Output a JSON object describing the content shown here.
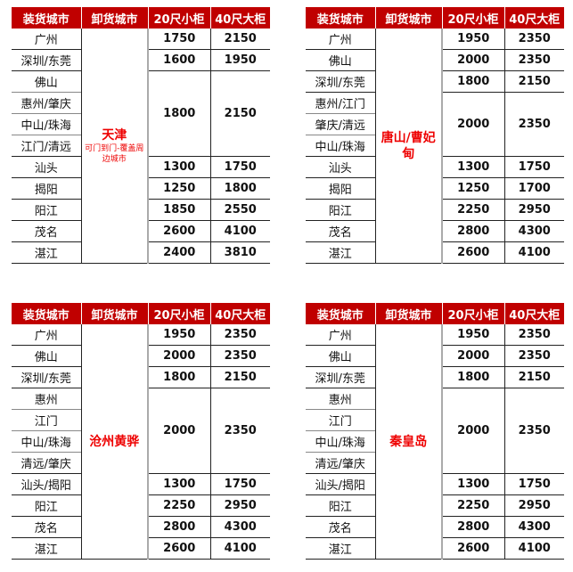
{
  "headers": [
    "装货城市",
    "卸货城市",
    "20尺小柜",
    "40尺大柜"
  ],
  "accent_color": "#c00000",
  "destination_color": "#ff0000",
  "tables": [
    {
      "destination": "天津",
      "note": "可门到门-覆盖周边城市",
      "load_cities": [
        "广州",
        "深圳/东莞",
        "佛山",
        "惠州/肇庆",
        "中山/珠海",
        "江门/清远",
        "汕头",
        "揭阳",
        "阳江",
        "茂名",
        "湛江"
      ],
      "prices": [
        {
          "rows": 1,
          "p20": "1750",
          "p40": "2150"
        },
        {
          "rows": 1,
          "p20": "1600",
          "p40": "1950"
        },
        {
          "rows": 4,
          "p20": "1800",
          "p40": "2150"
        },
        {
          "rows": 1,
          "p20": "1300",
          "p40": "1750"
        },
        {
          "rows": 1,
          "p20": "1250",
          "p40": "1800"
        },
        {
          "rows": 1,
          "p20": "1850",
          "p40": "2550"
        },
        {
          "rows": 1,
          "p20": "2600",
          "p40": "4100"
        },
        {
          "rows": 1,
          "p20": "2400",
          "p40": "3810"
        }
      ]
    },
    {
      "destination": "唐山/曹妃甸",
      "load_cities": [
        "广州",
        "佛山",
        "深圳/东莞",
        "惠州/江门",
        "肇庆/清远",
        "中山/珠海",
        "汕头",
        "揭阳",
        "阳江",
        "茂名",
        "湛江"
      ],
      "prices": [
        {
          "rows": 1,
          "p20": "1950",
          "p40": "2350"
        },
        {
          "rows": 1,
          "p20": "2000",
          "p40": "2350"
        },
        {
          "rows": 1,
          "p20": "1800",
          "p40": "2150"
        },
        {
          "rows": 3,
          "p20": "2000",
          "p40": "2350"
        },
        {
          "rows": 1,
          "p20": "1300",
          "p40": "1750"
        },
        {
          "rows": 1,
          "p20": "1250",
          "p40": "1700"
        },
        {
          "rows": 1,
          "p20": "2250",
          "p40": "2950"
        },
        {
          "rows": 1,
          "p20": "2800",
          "p40": "4300"
        },
        {
          "rows": 1,
          "p20": "2600",
          "p40": "4100"
        }
      ]
    },
    {
      "destination": "沧州黄骅",
      "load_cities": [
        "广州",
        "佛山",
        "深圳/东莞",
        "惠州",
        "江门",
        "中山/珠海",
        "清远/肇庆",
        "汕头/揭阳",
        "阳江",
        "茂名",
        "湛江"
      ],
      "prices": [
        {
          "rows": 1,
          "p20": "1950",
          "p40": "2350"
        },
        {
          "rows": 1,
          "p20": "2000",
          "p40": "2350"
        },
        {
          "rows": 1,
          "p20": "1800",
          "p40": "2150"
        },
        {
          "rows": 4,
          "p20": "2000",
          "p40": "2350"
        },
        {
          "rows": 1,
          "p20": "1300",
          "p40": "1750"
        },
        {
          "rows": 1,
          "p20": "2250",
          "p40": "2950"
        },
        {
          "rows": 1,
          "p20": "2800",
          "p40": "4300"
        },
        {
          "rows": 1,
          "p20": "2600",
          "p40": "4100"
        }
      ]
    },
    {
      "destination": "秦皇岛",
      "load_cities": [
        "广州",
        "佛山",
        "深圳/东莞",
        "惠州",
        "江门",
        "中山/珠海",
        "清远/肇庆",
        "汕头/揭阳",
        "阳江",
        "茂名",
        "湛江"
      ],
      "prices": [
        {
          "rows": 1,
          "p20": "1950",
          "p40": "2350"
        },
        {
          "rows": 1,
          "p20": "2000",
          "p40": "2350"
        },
        {
          "rows": 1,
          "p20": "1800",
          "p40": "2150"
        },
        {
          "rows": 4,
          "p20": "2000",
          "p40": "2350"
        },
        {
          "rows": 1,
          "p20": "1300",
          "p40": "1750"
        },
        {
          "rows": 1,
          "p20": "2250",
          "p40": "2950"
        },
        {
          "rows": 1,
          "p20": "2800",
          "p40": "4300"
        },
        {
          "rows": 1,
          "p20": "2600",
          "p40": "4100"
        }
      ]
    }
  ]
}
